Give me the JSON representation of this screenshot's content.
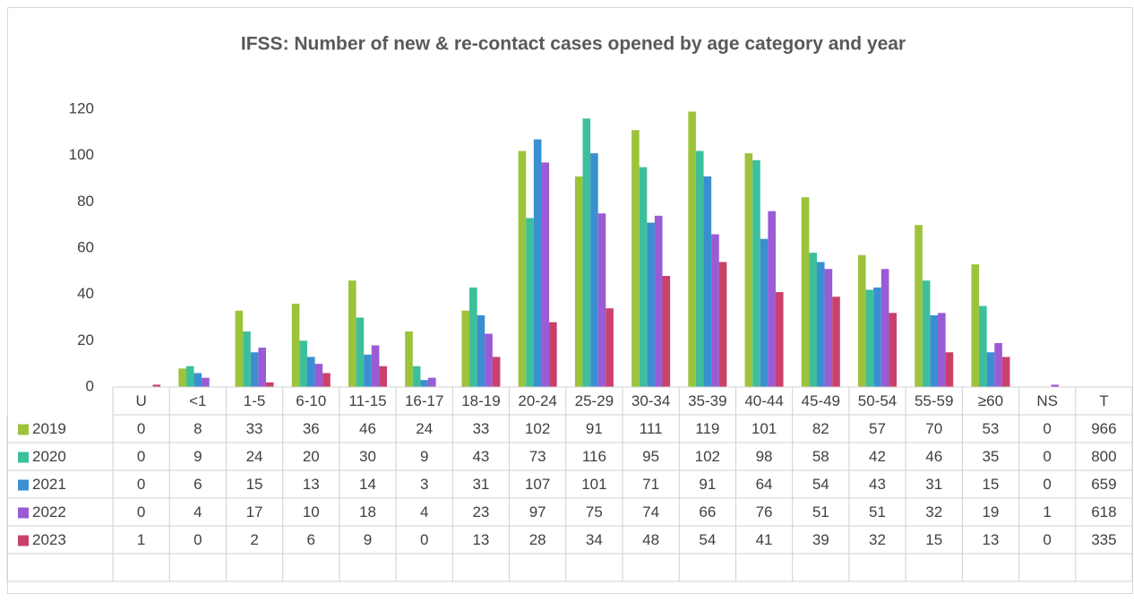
{
  "chart_data": {
    "type": "bar",
    "title": "IFSS: Number of new & re-contact cases opened by age category and year",
    "categories": [
      "U",
      "<1",
      "1-5",
      "6-10",
      "11-15",
      "16-17",
      "18-19",
      "20-24",
      "25-29",
      "30-34",
      "35-39",
      "40-44",
      "45-49",
      "50-54",
      "55-59",
      "≥60",
      "NS"
    ],
    "total_label": "T",
    "series": [
      {
        "name": "2019",
        "color": "#9dc33b",
        "values": [
          0,
          8,
          33,
          36,
          46,
          24,
          33,
          102,
          91,
          111,
          119,
          101,
          82,
          57,
          70,
          53,
          0
        ],
        "total": 966
      },
      {
        "name": "2020",
        "color": "#3dbf9c",
        "values": [
          0,
          9,
          24,
          20,
          30,
          9,
          43,
          73,
          116,
          95,
          102,
          98,
          58,
          42,
          46,
          35,
          0
        ],
        "total": 800
      },
      {
        "name": "2021",
        "color": "#3a8fd0",
        "values": [
          0,
          6,
          15,
          13,
          14,
          3,
          31,
          107,
          101,
          71,
          91,
          64,
          54,
          43,
          31,
          15,
          0
        ],
        "total": 659
      },
      {
        "name": "2022",
        "color": "#9a5bd6",
        "values": [
          0,
          4,
          17,
          10,
          18,
          4,
          23,
          97,
          75,
          74,
          66,
          76,
          51,
          51,
          32,
          19,
          1
        ],
        "total": 618
      },
      {
        "name": "2023",
        "color": "#c9416a",
        "values": [
          1,
          0,
          2,
          6,
          9,
          0,
          13,
          28,
          34,
          48,
          54,
          41,
          39,
          32,
          15,
          13,
          0
        ],
        "total": 335
      }
    ],
    "ylim": [
      0,
      120
    ],
    "yticks": [
      0,
      20,
      40,
      60,
      80,
      100,
      120
    ],
    "grid": false
  }
}
